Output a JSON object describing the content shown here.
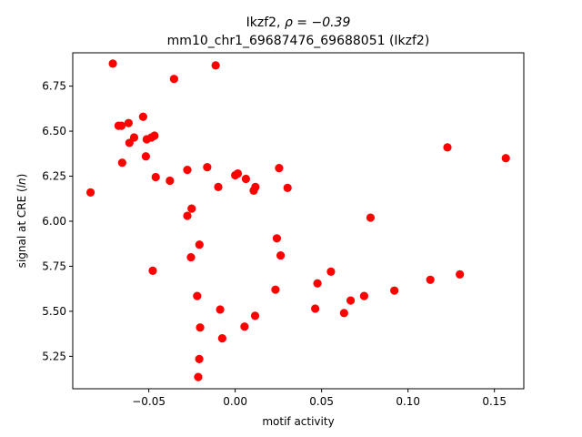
{
  "chart_data": {
    "type": "scatter",
    "title_line1": "Ikzf2, ",
    "title_rho": "ρ = −0.39",
    "title_line2": "mm10_chr1_69687476_69688051 (Ikzf2)",
    "xlabel": "motif activity",
    "ylabel_main": "signal at CRE (",
    "ylabel_ital": "ln",
    "ylabel_end": ")",
    "xlim": [
      -0.094,
      0.167
    ],
    "ylim": [
      5.07,
      6.935
    ],
    "xticks": [
      -0.05,
      0.0,
      0.05,
      0.1,
      0.15
    ],
    "xtick_labels": [
      "−0.05",
      "0.00",
      "0.05",
      "0.10",
      "0.15"
    ],
    "yticks": [
      5.25,
      5.5,
      5.75,
      6.0,
      6.25,
      6.5,
      6.75
    ],
    "ytick_labels": [
      "5.25",
      "5.50",
      "5.75",
      "6.00",
      "6.25",
      "6.50",
      "6.75"
    ],
    "marker_color": "#ff0000",
    "grid": false,
    "points": [
      {
        "x": -0.0837,
        "y": 6.16
      },
      {
        "x": -0.0708,
        "y": 6.875
      },
      {
        "x": -0.0675,
        "y": 6.53
      },
      {
        "x": -0.0658,
        "y": 6.53
      },
      {
        "x": -0.0654,
        "y": 6.325
      },
      {
        "x": -0.0617,
        "y": 6.545
      },
      {
        "x": -0.0612,
        "y": 6.435
      },
      {
        "x": -0.0585,
        "y": 6.465
      },
      {
        "x": -0.0533,
        "y": 6.58
      },
      {
        "x": -0.0517,
        "y": 6.36
      },
      {
        "x": -0.0512,
        "y": 6.455
      },
      {
        "x": -0.0485,
        "y": 6.465
      },
      {
        "x": -0.0477,
        "y": 5.725
      },
      {
        "x": -0.0467,
        "y": 6.475
      },
      {
        "x": -0.046,
        "y": 6.245
      },
      {
        "x": -0.0378,
        "y": 6.225
      },
      {
        "x": -0.0354,
        "y": 6.79
      },
      {
        "x": -0.0277,
        "y": 6.285
      },
      {
        "x": -0.0277,
        "y": 6.03
      },
      {
        "x": -0.0252,
        "y": 6.07
      },
      {
        "x": -0.0256,
        "y": 5.8
      },
      {
        "x": -0.022,
        "y": 5.585
      },
      {
        "x": -0.0208,
        "y": 5.235
      },
      {
        "x": -0.0207,
        "y": 5.87
      },
      {
        "x": -0.0203,
        "y": 5.41
      },
      {
        "x": -0.0214,
        "y": 5.135
      },
      {
        "x": -0.0162,
        "y": 6.3
      },
      {
        "x": -0.0113,
        "y": 6.865
      },
      {
        "x": -0.0098,
        "y": 6.19
      },
      {
        "x": -0.0087,
        "y": 5.51
      },
      {
        "x": -0.0075,
        "y": 5.35
      },
      {
        "x": 0.0,
        "y": 6.255
      },
      {
        "x": 0.0015,
        "y": 6.265
      },
      {
        "x": 0.0054,
        "y": 5.415
      },
      {
        "x": 0.0062,
        "y": 6.235
      },
      {
        "x": 0.0107,
        "y": 6.17
      },
      {
        "x": 0.0115,
        "y": 5.475
      },
      {
        "x": 0.0117,
        "y": 6.19
      },
      {
        "x": 0.0233,
        "y": 5.62
      },
      {
        "x": 0.0241,
        "y": 5.905
      },
      {
        "x": 0.0254,
        "y": 6.295
      },
      {
        "x": 0.0263,
        "y": 5.81
      },
      {
        "x": 0.0303,
        "y": 6.185
      },
      {
        "x": 0.0463,
        "y": 5.515
      },
      {
        "x": 0.0476,
        "y": 5.655
      },
      {
        "x": 0.0554,
        "y": 5.72
      },
      {
        "x": 0.063,
        "y": 5.49
      },
      {
        "x": 0.0668,
        "y": 5.56
      },
      {
        "x": 0.0746,
        "y": 5.585
      },
      {
        "x": 0.0783,
        "y": 6.02
      },
      {
        "x": 0.0921,
        "y": 5.615
      },
      {
        "x": 0.1129,
        "y": 5.675
      },
      {
        "x": 0.1228,
        "y": 6.41
      },
      {
        "x": 0.13,
        "y": 5.705
      },
      {
        "x": 0.1566,
        "y": 6.35
      }
    ]
  }
}
